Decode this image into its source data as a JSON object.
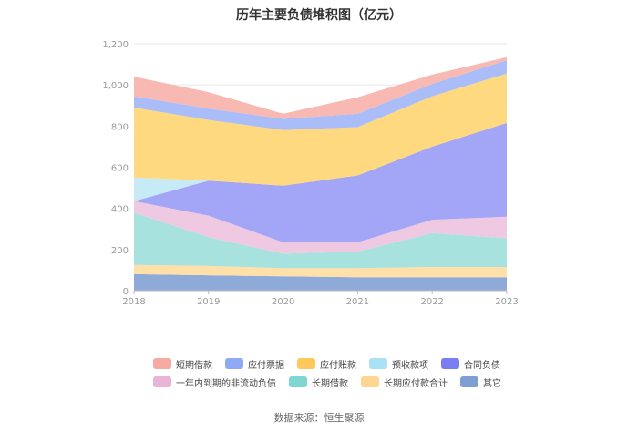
{
  "chart_data": {
    "type": "area",
    "stacked": true,
    "title": "历年主要负债堆积图（亿元）",
    "categories": [
      "2018",
      "2019",
      "2020",
      "2021",
      "2022",
      "2023"
    ],
    "ylim": [
      0,
      1200
    ],
    "yticks": [
      "0",
      "200",
      "400",
      "600",
      "800",
      "1,000",
      "1,200"
    ],
    "ytick_values": [
      0,
      200,
      400,
      600,
      800,
      1000,
      1200
    ],
    "series": [
      {
        "name": "其它",
        "color": "#8eaad8",
        "values": [
          80,
          75,
          70,
          65,
          65,
          65
        ]
      },
      {
        "name": "长期应付款合计",
        "color": "#ffe0a8",
        "values": [
          45,
          45,
          40,
          45,
          50,
          50
        ]
      },
      {
        "name": "长期借款",
        "color": "#a8e2de",
        "values": [
          255,
          140,
          70,
          80,
          165,
          140
        ]
      },
      {
        "name": "一年内到期的非流动负债",
        "color": "#efc9e2",
        "values": [
          55,
          105,
          55,
          45,
          65,
          105
        ]
      },
      {
        "name": "合同负债",
        "color": "#a3a5f6",
        "values": [
          0,
          170,
          275,
          325,
          355,
          455
        ]
      },
      {
        "name": "预收款项",
        "color": "#c6ebf6",
        "values": [
          115,
          0,
          0,
          0,
          0,
          0
        ]
      },
      {
        "name": "应付账款",
        "color": "#fed97f",
        "values": [
          340,
          295,
          270,
          235,
          245,
          240
        ]
      },
      {
        "name": "应付票据",
        "color": "#abbdf9",
        "values": [
          55,
          55,
          55,
          65,
          60,
          65
        ]
      },
      {
        "name": "短期借款",
        "color": "#f8b9b3",
        "values": [
          95,
          80,
          25,
          80,
          45,
          15
        ]
      }
    ],
    "legend_rows": [
      [
        {
          "name": "短期借款",
          "color": "#f8a9a2"
        },
        {
          "name": "应付票据",
          "color": "#8eaaf6"
        },
        {
          "name": "应付账款",
          "color": "#fec95a"
        },
        {
          "name": "预收款项",
          "color": "#a9e2f6"
        },
        {
          "name": "合同负债",
          "color": "#7b7ef2"
        }
      ],
      [
        {
          "name": "一年内到期的非流动负债",
          "color": "#e8b5d8"
        },
        {
          "name": "长期借款",
          "color": "#7fd6d2"
        },
        {
          "name": "长期应付款合计",
          "color": "#ffd592"
        },
        {
          "name": "其它",
          "color": "#7f9fd4"
        }
      ]
    ]
  },
  "source": "数据来源：恒生聚源"
}
